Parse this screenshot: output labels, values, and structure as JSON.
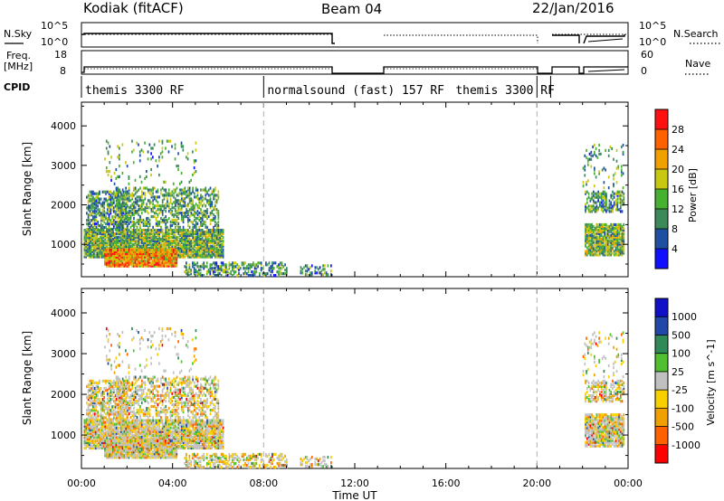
{
  "header": {
    "station": "Kodiak (fitACF)",
    "beam": "Beam 04",
    "date": "22/Jan/2016"
  },
  "side_labels": {
    "nsky": "N.Sky",
    "nsky_top": "10^5",
    "nsky_bottom": "10^0",
    "nsearch": "N.Search",
    "nsearch_top": "10^5",
    "nsearch_bottom": "10^0",
    "freq_line1": "Freq.",
    "freq_line2": "[MHz]",
    "freq_top": "18",
    "freq_bottom": "8",
    "nave": "Nave",
    "nave_top": "60",
    "nave_bottom": "0",
    "cpid": "CPID"
  },
  "cpid_segments": [
    {
      "label": "themis 3300 RF",
      "start_h": 0.0,
      "end_h": 8.0
    },
    {
      "label": "normalsound (fast) 157 RF",
      "start_h": 8.0,
      "end_h": 20.0
    },
    {
      "label": "themis 3300 RF",
      "start_h": 20.0,
      "end_h": 24.0
    }
  ],
  "colors": {
    "power": [
      "#1010ff",
      "#1e4fa0",
      "#3c8a5a",
      "#48b030",
      "#c8c810",
      "#f0a000",
      "#ff6000",
      "#ff1010"
    ],
    "velocity": [
      "#ff0000",
      "#ff6000",
      "#f0a000",
      "#f8d000",
      "#c0c0c0",
      "#50c030",
      "#2f8a58",
      "#1f48a8",
      "#1010c8"
    ]
  },
  "chart_data": [
    {
      "type": "heatmap",
      "name": "Power",
      "xlabel": "Time UT",
      "ylabel": "Slant Range [km]",
      "colorbar_label": "Power [dB]",
      "colorbar_ticks": [
        "4",
        "8",
        "12",
        "16",
        "20",
        "24",
        "28"
      ],
      "colorbar_range": [
        0,
        32
      ],
      "xlim": [
        0,
        24
      ],
      "ylim": [
        180,
        4600
      ],
      "x_ticks": [
        "00:00",
        "04:00",
        "08:00",
        "12:00",
        "16:00",
        "20:00",
        "00:00"
      ],
      "y_ticks": [
        "1000",
        "2000",
        "3000",
        "4000"
      ]
    },
    {
      "type": "heatmap",
      "name": "Velocity",
      "xlabel": "Time UT",
      "ylabel": "Slant Range [km]",
      "colorbar_label": "Velocity [m s^-1]",
      "colorbar_ticks": [
        "-1000",
        "-500",
        "-100",
        "-25",
        "25",
        "100",
        "500",
        "1000"
      ],
      "xlim": [
        0,
        24
      ],
      "ylim": [
        180,
        4600
      ],
      "x_ticks": [
        "00:00",
        "04:00",
        "08:00",
        "12:00",
        "16:00",
        "20:00",
        "00:00"
      ],
      "y_ticks": [
        "1000",
        "2000",
        "3000",
        "4000"
      ]
    }
  ]
}
